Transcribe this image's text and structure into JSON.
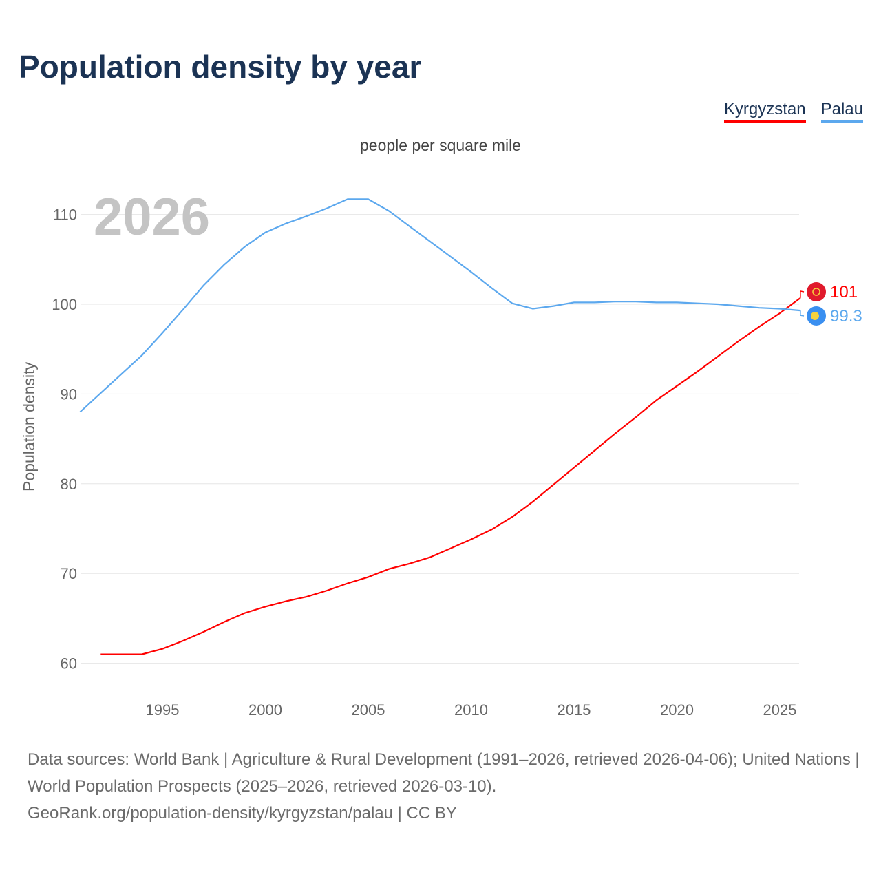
{
  "title": "Population density by year",
  "colors": {
    "kyrgyzstan": "#ff0000",
    "palau": "#5ca8ee"
  },
  "chart_data": {
    "type": "line",
    "title": "Population density by year",
    "subtitle": "people per square mile",
    "ylabel": "Population density",
    "xlabel": "",
    "year_watermark": "2026",
    "ylim": [
      60,
      110
    ],
    "xlim": [
      1991,
      2026
    ],
    "yticks": [
      60,
      70,
      80,
      90,
      100,
      110
    ],
    "xticks": [
      1995,
      2000,
      2005,
      2010,
      2015,
      2020,
      2025
    ],
    "grid": true,
    "legend_position": "top-right",
    "series": [
      {
        "name": "Kyrgyzstan",
        "end_label": "101",
        "x": [
          1992,
          1993,
          1994,
          1995,
          1996,
          1997,
          1998,
          1999,
          2000,
          2001,
          2002,
          2003,
          2004,
          2005,
          2006,
          2007,
          2008,
          2009,
          2010,
          2011,
          2012,
          2013,
          2014,
          2015,
          2016,
          2017,
          2018,
          2019,
          2020,
          2021,
          2022,
          2023,
          2024,
          2025,
          2026
        ],
        "values": [
          61.0,
          61.0,
          61.0,
          61.6,
          62.5,
          63.5,
          64.6,
          65.6,
          66.3,
          66.9,
          67.4,
          68.1,
          68.9,
          69.6,
          70.5,
          71.1,
          71.8,
          72.8,
          73.8,
          74.9,
          76.3,
          78.0,
          79.9,
          81.8,
          83.7,
          85.6,
          87.4,
          89.3,
          90.9,
          92.5,
          94.2,
          95.9,
          97.5,
          99.0,
          100.7
        ]
      },
      {
        "name": "Palau",
        "end_label": "99.3",
        "x": [
          1991,
          1992,
          1993,
          1994,
          1995,
          1996,
          1997,
          1998,
          1999,
          2000,
          2001,
          2002,
          2003,
          2004,
          2005,
          2006,
          2007,
          2008,
          2009,
          2010,
          2011,
          2012,
          2013,
          2014,
          2015,
          2016,
          2017,
          2018,
          2019,
          2020,
          2021,
          2022,
          2023,
          2024,
          2025,
          2026
        ],
        "values": [
          88.0,
          90.1,
          92.2,
          94.3,
          96.8,
          99.4,
          102.1,
          104.4,
          106.4,
          108.0,
          109.0,
          109.8,
          110.7,
          111.7,
          111.7,
          110.4,
          108.7,
          107.0,
          105.3,
          103.6,
          101.8,
          100.1,
          99.5,
          99.8,
          100.2,
          100.2,
          100.3,
          100.3,
          100.2,
          100.2,
          100.1,
          100.0,
          99.8,
          99.6,
          99.5,
          99.3
        ]
      }
    ]
  },
  "footer": {
    "sources": "Data sources: World Bank | Agriculture & Rural Development (1991–2026, retrieved 2026-04-06); United Nations | World Population Prospects (2025–2026, retrieved 2026-03-10).",
    "link": "GeoRank.org/population-density/kyrgyzstan/palau | CC BY"
  }
}
